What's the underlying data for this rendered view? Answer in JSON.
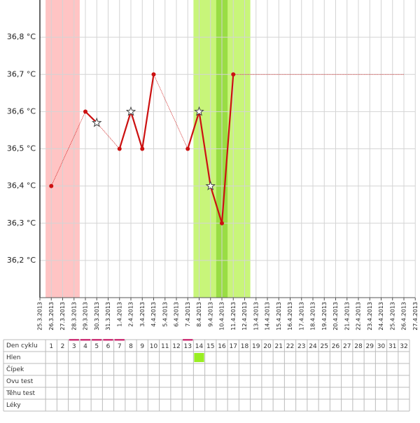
{
  "chart_data": {
    "type": "line",
    "categories": [
      "25.3.2013",
      "26.3.2013",
      "27.3.2013",
      "28.3.2013",
      "29.3.2013",
      "30.3.2013",
      "31.3.2013",
      "1.4.2013",
      "2.4.2013",
      "3.4.2013",
      "4.4.2013",
      "5.4.2013",
      "6.4.2013",
      "7.4.2013",
      "8.4.2013",
      "9.4.2013",
      "10.4.2013",
      "11.4.2013",
      "12.4.2013",
      "13.4.2013",
      "14.4.2013",
      "15.4.2013",
      "16.4.2013",
      "17.4.2013",
      "18.4.2013",
      "19.4.2013",
      "20.4.2013",
      "21.4.2013",
      "22.4.2013",
      "23.4.2013",
      "24.4.2013",
      "25.4.2013",
      "26.4.2013",
      "27.4.2013"
    ],
    "series": [
      {
        "color": "#cc1111",
        "x": [
          "26.3.2013",
          "29.3.2013",
          "30.3.2013",
          "1.4.2013",
          "2.4.2013",
          "3.4.2013",
          "4.4.2013",
          "7.4.2013",
          "8.4.2013",
          "9.4.2013",
          "10.4.2013",
          "11.4.2013",
          "26.4.2013"
        ],
        "values": [
          36.4,
          36.6,
          36.57,
          36.5,
          36.6,
          36.5,
          36.7,
          36.5,
          36.6,
          36.4,
          36.3,
          36.7,
          36.7
        ],
        "markers": [
          "dot",
          "dot",
          "star",
          "dot",
          "star",
          "dot",
          "dot",
          "dot",
          "star",
          "star",
          "dot",
          "dot",
          "none"
        ]
      }
    ],
    "bands": [
      {
        "from": "26.3.2013",
        "to": "28.3.2013",
        "color": "#ffc4c4"
      },
      {
        "from": "8.4.2013",
        "to": "12.4.2013",
        "color": "#c8f57a"
      },
      {
        "from": "10.4.2013",
        "to": "10.4.2013",
        "color": "#99dd44"
      }
    ],
    "ylim": [
      36.1,
      36.9
    ],
    "yticks": [
      {
        "value": 36.2,
        "label": "36,2 °C"
      },
      {
        "value": 36.3,
        "label": "36,3 °C"
      },
      {
        "value": 36.4,
        "label": "36,4 °C"
      },
      {
        "value": 36.5,
        "label": "36,5 °C"
      },
      {
        "value": 36.6,
        "label": "36,6 °C"
      },
      {
        "value": 36.7,
        "label": "36,7 °C"
      },
      {
        "value": 36.8,
        "label": "36,8 °C"
      }
    ],
    "grid": true
  },
  "table": {
    "row_labels": [
      "Den cyklu",
      "Hlen",
      "Čípek",
      "Ovu test",
      "Těhu test",
      "Léky"
    ],
    "days": [
      1,
      2,
      3,
      4,
      5,
      6,
      7,
      8,
      9,
      10,
      11,
      12,
      13,
      14,
      15,
      16,
      17,
      18,
      19,
      20,
      21,
      22,
      23,
      24,
      25,
      26,
      27,
      28,
      29,
      30,
      31,
      32
    ],
    "underlined_days": [
      3,
      4,
      5,
      6,
      7,
      13
    ],
    "filled_cells": [
      {
        "row": "Hlen",
        "day": 14,
        "color": "#99ee22"
      }
    ]
  }
}
